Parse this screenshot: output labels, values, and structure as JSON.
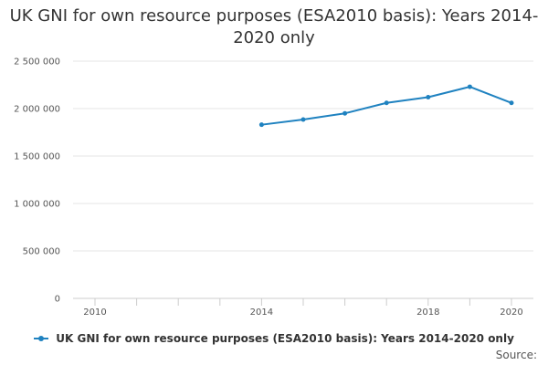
{
  "chart_data": {
    "type": "line",
    "title": "UK GNI for own resource purposes (ESA2010 basis): Years 2014-2020 only",
    "xlabel": "",
    "ylabel": "",
    "x": [
      2014,
      2015,
      2016,
      2017,
      2018,
      2019,
      2020
    ],
    "series": [
      {
        "name": "UK GNI for own resource purposes (ESA2010 basis): Years 2014-2020 only",
        "values": [
          1830000,
          1885000,
          1950000,
          2060000,
          2120000,
          2230000,
          2060000
        ],
        "color": "#1f82c0"
      }
    ],
    "xlim": [
      2010,
      2020
    ],
    "ylim": [
      0,
      2500000
    ],
    "x_tick_labels": [
      "2010",
      "2014",
      "2018",
      "2020"
    ],
    "y_tick_labels": [
      "0",
      "500 000",
      "1 000 000",
      "1 500 000",
      "2 000 000",
      "2 500 000"
    ],
    "grid": true,
    "legend_position": "bottom"
  },
  "source_label": "Source:"
}
